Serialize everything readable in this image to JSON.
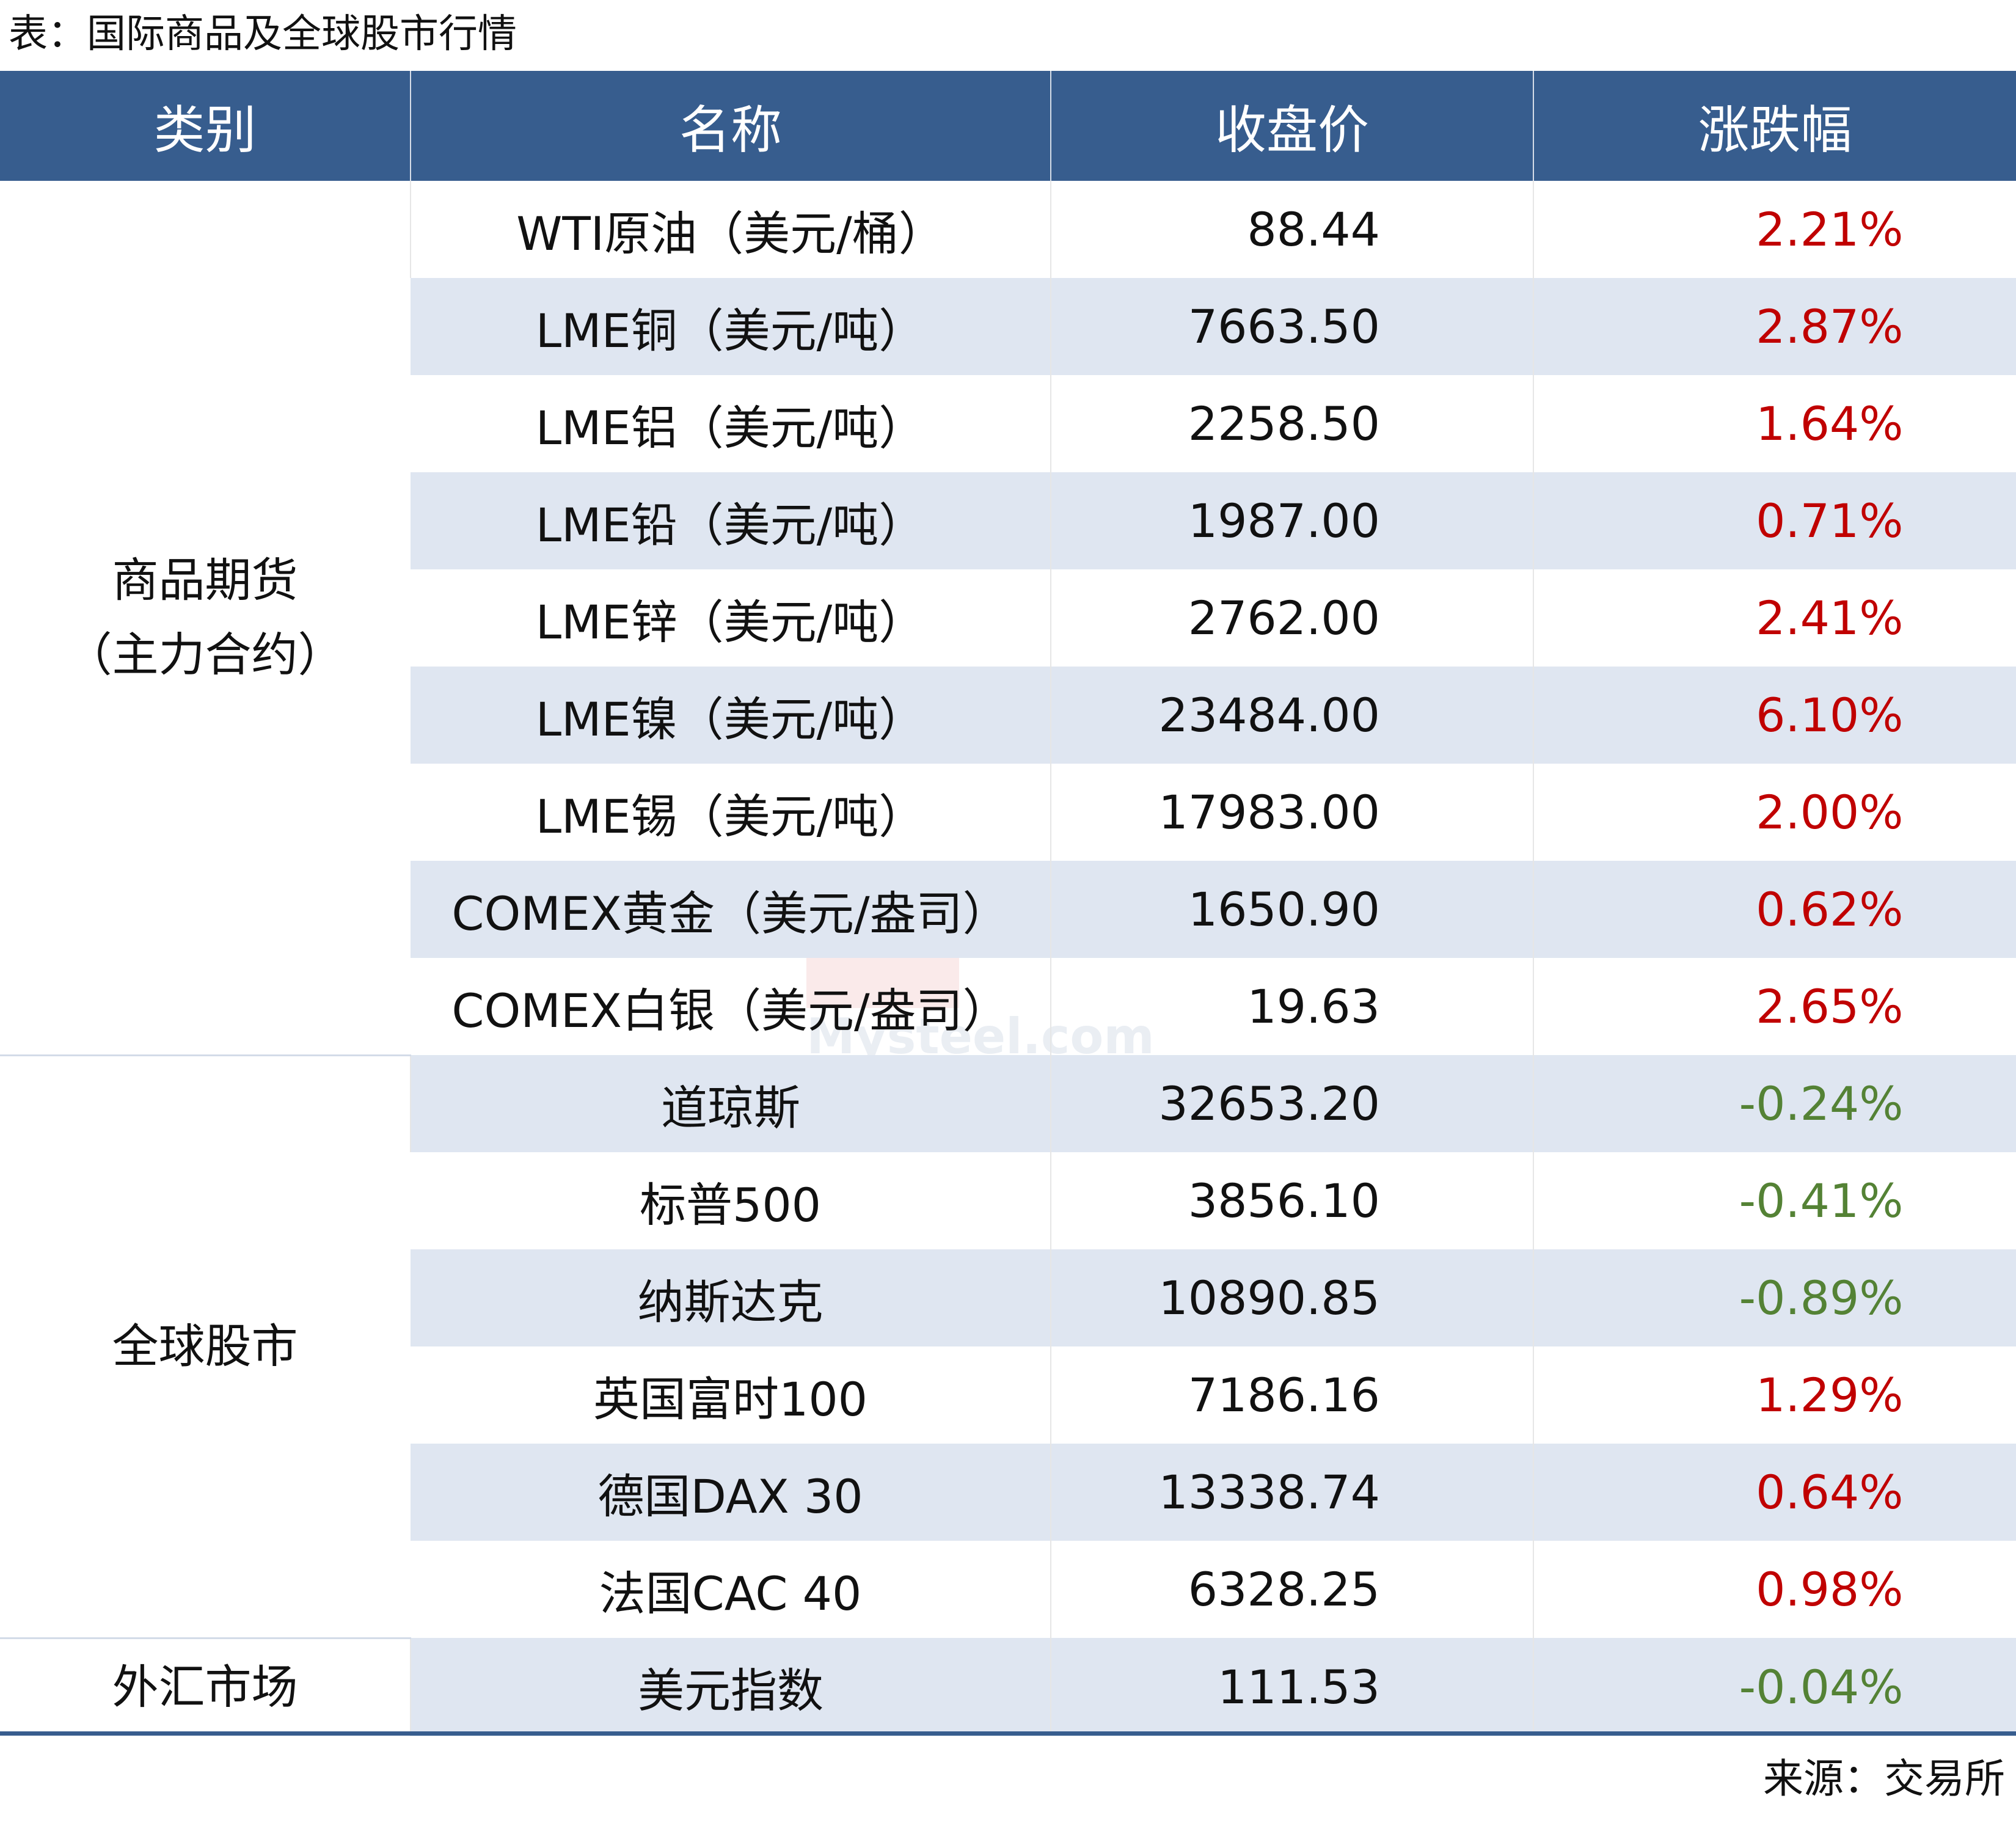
{
  "title": "表：国际商品及全球股市行情",
  "headers": {
    "category": "类别",
    "name": "名称",
    "close": "收盘价",
    "change": "涨跌幅"
  },
  "groups": [
    {
      "category_line1": "商品期货",
      "category_line2": "（主力合约）"
    },
    {
      "category_line1": "全球股市",
      "category_line2": ""
    },
    {
      "category_line1": "外汇市场",
      "category_line2": ""
    }
  ],
  "rows": [
    {
      "name": "WTI原油（美元/桶）",
      "close": "88.44",
      "change": "2.21%"
    },
    {
      "name": "LME铜（美元/吨）",
      "close": "7663.50",
      "change": "2.87%"
    },
    {
      "name": "LME铝（美元/吨）",
      "close": "2258.50",
      "change": "1.64%"
    },
    {
      "name": "LME铅（美元/吨）",
      "close": "1987.00",
      "change": "0.71%"
    },
    {
      "name": "LME锌（美元/吨）",
      "close": "2762.00",
      "change": "2.41%"
    },
    {
      "name": "LME镍（美元/吨）",
      "close": "23484.00",
      "change": "6.10%"
    },
    {
      "name": "LME锡（美元/吨）",
      "close": "17983.00",
      "change": "2.00%"
    },
    {
      "name": "COMEX黄金（美元/盎司）",
      "close": "1650.90",
      "change": "0.62%"
    },
    {
      "name": "COMEX白银（美元/盎司）",
      "close": "19.63",
      "change": "2.65%"
    },
    {
      "name": "道琼斯",
      "close": "32653.20",
      "change": "-0.24%"
    },
    {
      "name": "标普500",
      "close": "3856.10",
      "change": "-0.41%"
    },
    {
      "name": "纳斯达克",
      "close": "10890.85",
      "change": "-0.89%"
    },
    {
      "name": "英国富时100",
      "close": "7186.16",
      "change": "1.29%"
    },
    {
      "name": "德国DAX 30",
      "close": "13338.74",
      "change": "0.64%"
    },
    {
      "name": "法国CAC 40",
      "close": "6328.25",
      "change": "0.98%"
    },
    {
      "name": "美元指数",
      "close": "111.53",
      "change": "-0.04%"
    }
  ],
  "source": "来源：交易所",
  "watermark": "Mysteel.com",
  "colors": {
    "header_bg": "#375d8e",
    "stripe": "#dfe6f1",
    "up": "#c00000",
    "down": "#548235"
  }
}
